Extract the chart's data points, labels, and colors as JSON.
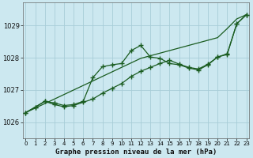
{
  "title": "Graphe pression niveau de la mer (hPa)",
  "bg_color": "#cce8f0",
  "grid_color": "#a8cdd8",
  "line_color": "#1a5c20",
  "xlim": [
    -0.3,
    23.3
  ],
  "ylim": [
    1025.5,
    1029.7
  ],
  "yticks": [
    1026,
    1027,
    1028,
    1029
  ],
  "x_labels": [
    "0",
    "1",
    "2",
    "3",
    "4",
    "5",
    "6",
    "7",
    "8",
    "9",
    "10",
    "11",
    "12",
    "13",
    "14",
    "15",
    "16",
    "17",
    "18",
    "19",
    "20",
    "21",
    "22",
    "23"
  ],
  "series_straight": [
    1026.3,
    1026.44,
    1026.58,
    1026.72,
    1026.86,
    1027.0,
    1027.14,
    1027.28,
    1027.42,
    1027.56,
    1027.7,
    1027.84,
    1027.98,
    1028.06,
    1028.14,
    1028.22,
    1028.3,
    1028.38,
    1028.46,
    1028.54,
    1028.62,
    1028.9,
    1029.2,
    1029.33
  ],
  "series_wiggly": [
    1026.3,
    1026.47,
    1026.65,
    1026.6,
    1026.52,
    1026.55,
    1026.65,
    1027.38,
    1027.72,
    1027.78,
    1027.82,
    1028.22,
    1028.38,
    1028.02,
    1027.98,
    1027.82,
    1027.78,
    1027.68,
    1027.62,
    1027.78,
    1028.02,
    1028.12,
    1029.05,
    1029.33
  ],
  "series_low": [
    1026.3,
    1026.47,
    1026.65,
    1026.55,
    1026.48,
    1026.52,
    1026.62,
    1026.72,
    1026.9,
    1027.05,
    1027.2,
    1027.42,
    1027.58,
    1027.7,
    1027.82,
    1027.92,
    1027.8,
    1027.7,
    1027.65,
    1027.8,
    1028.02,
    1028.1,
    1029.05,
    1029.33
  ]
}
